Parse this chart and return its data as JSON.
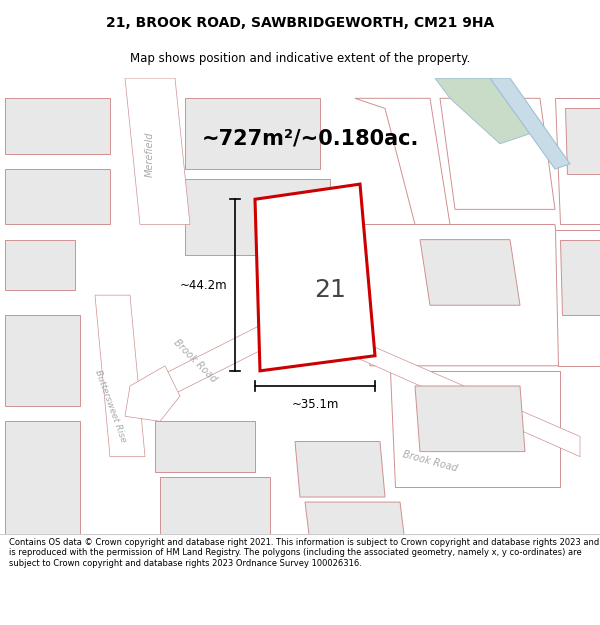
{
  "title": "21, BROOK ROAD, SAWBRIDGEWORTH, CM21 9HA",
  "subtitle": "Map shows position and indicative extent of the property.",
  "area_text": "~727m²/~0.180ac.",
  "property_label": "21",
  "dim_width": "~35.1m",
  "dim_height": "~44.2m",
  "footer": "Contains OS data © Crown copyright and database right 2021. This information is subject to Crown copyright and database rights 2023 and is reproduced with the permission of HM Land Registry. The polygons (including the associated geometry, namely x, y co-ordinates) are subject to Crown copyright and database rights 2023 Ordnance Survey 100026316.",
  "map_bg": "#f5f5f5",
  "building_fill": "#e8e8e8",
  "building_edge": "#d09090",
  "road_fill": "#ffffff",
  "road_edge": "#d09090",
  "road_label_color": "#aaaaaa",
  "property_color": "#cc0000",
  "dim_color": "#000000",
  "water_fill": "#c8dce8",
  "water_edge": "#a0c0d4",
  "green_fill": "#c8dcc8",
  "text_color": "#000000",
  "footer_color": "#000000",
  "large_plot_fill": "#ffffff",
  "large_plot_edge": "#d09090"
}
